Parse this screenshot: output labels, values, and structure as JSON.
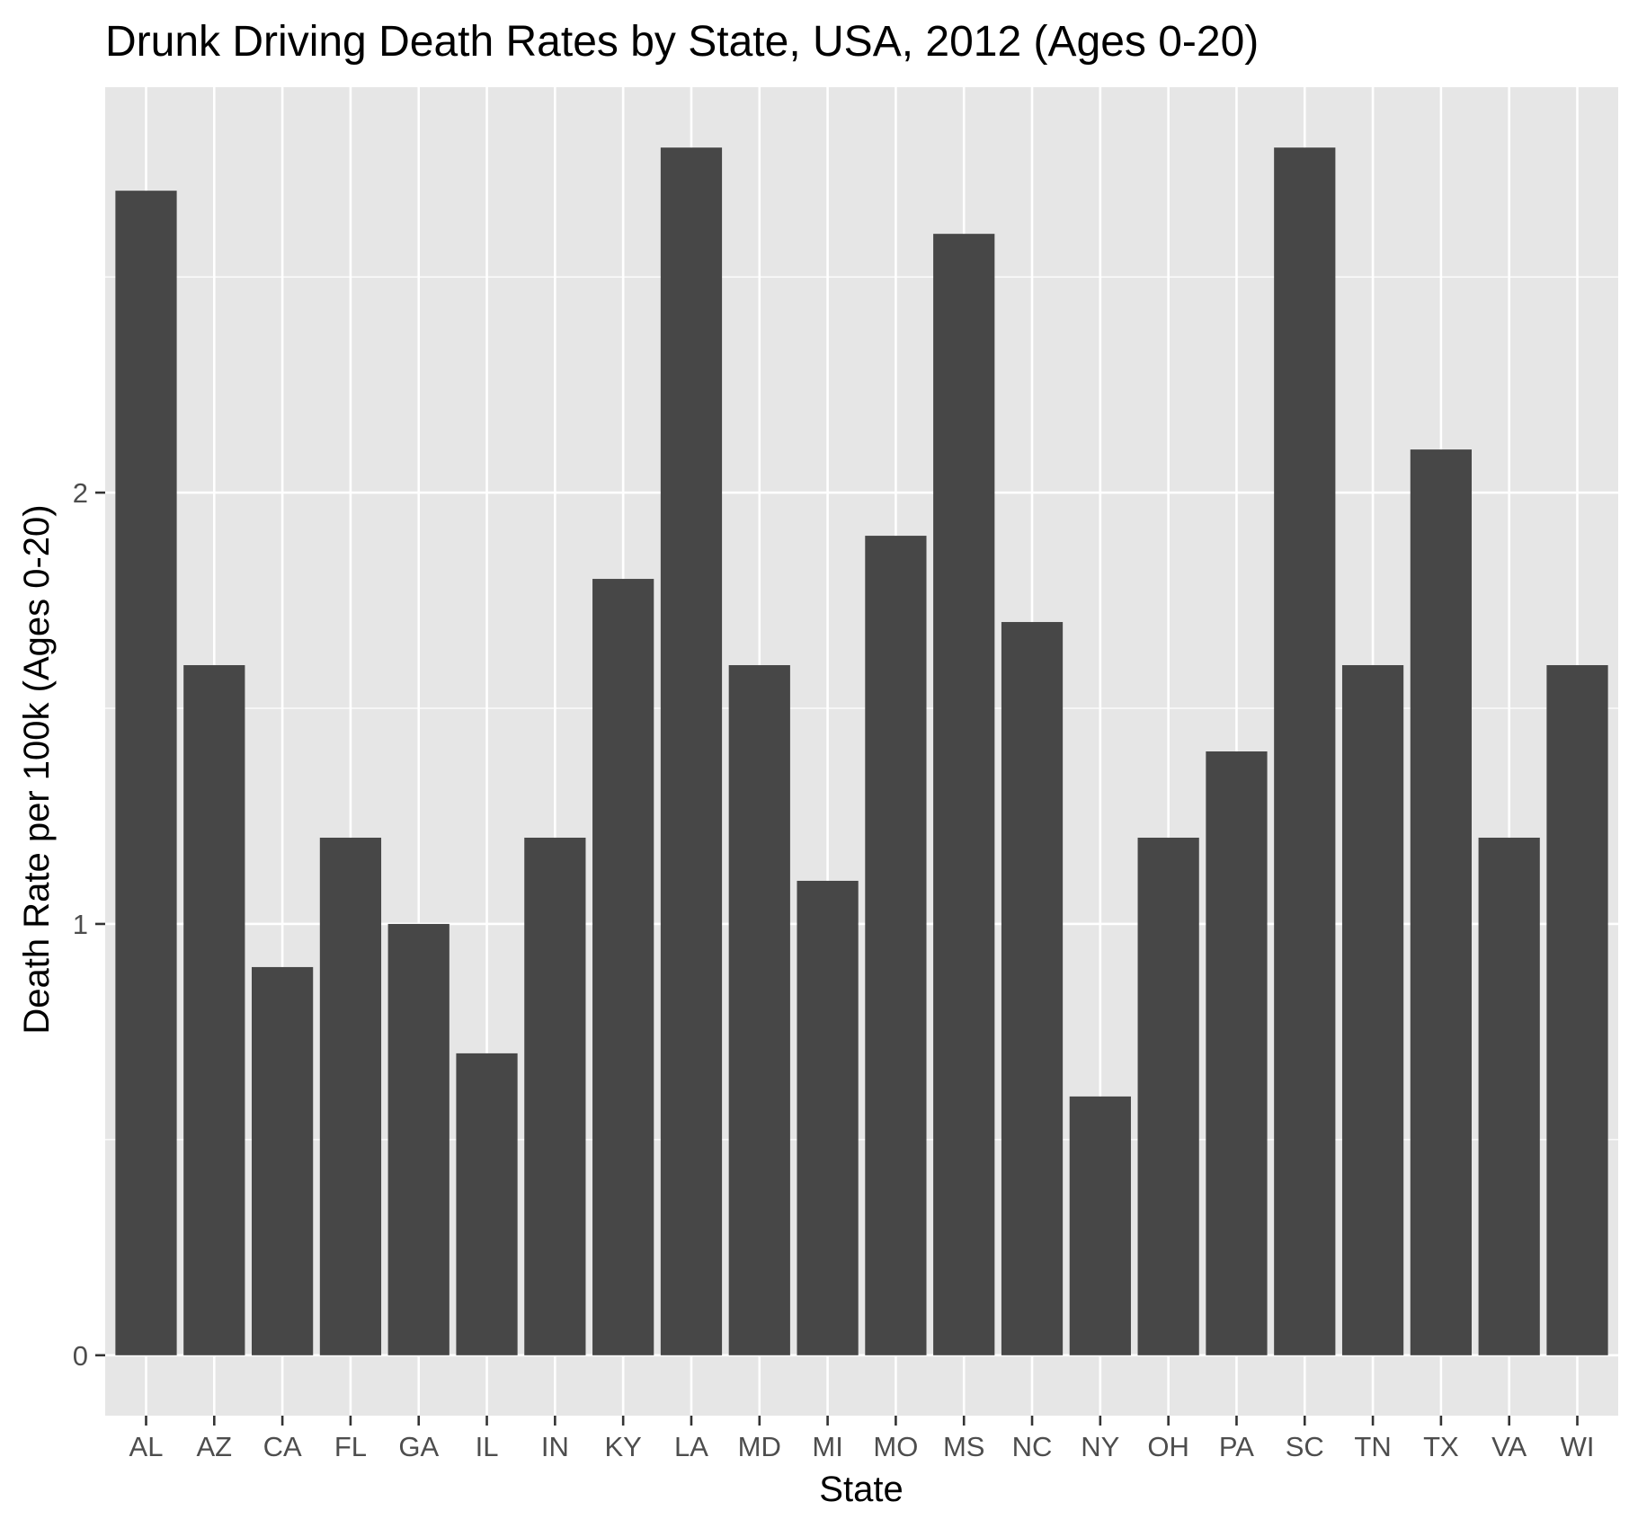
{
  "chart_data": {
    "type": "bar",
    "title": "Drunk Driving Death Rates by State, USA, 2012 (Ages 0-20)",
    "xlabel": "State",
    "ylabel": "Death Rate per 100k (Ages 0-20)",
    "categories": [
      "AL",
      "AZ",
      "CA",
      "FL",
      "GA",
      "IL",
      "IN",
      "KY",
      "LA",
      "MD",
      "MI",
      "MO",
      "MS",
      "NC",
      "NY",
      "OH",
      "PA",
      "SC",
      "TN",
      "TX",
      "VA",
      "WI"
    ],
    "values": [
      2.7,
      1.6,
      0.9,
      1.2,
      1.0,
      0.7,
      1.2,
      1.8,
      2.8,
      1.6,
      1.1,
      1.9,
      2.6,
      1.7,
      0.6,
      1.2,
      1.4,
      2.8,
      1.6,
      2.1,
      1.2,
      1.6
    ],
    "yticks": [
      0,
      1,
      2
    ],
    "ylim": [
      -0.14,
      2.94
    ],
    "grid": true,
    "legend": "none",
    "colors": {
      "bar": "#474747",
      "panel": "#e6e6e6",
      "grid": "#ffffff",
      "tick_text": "#4d4d4d",
      "title_text": "#000000"
    }
  }
}
